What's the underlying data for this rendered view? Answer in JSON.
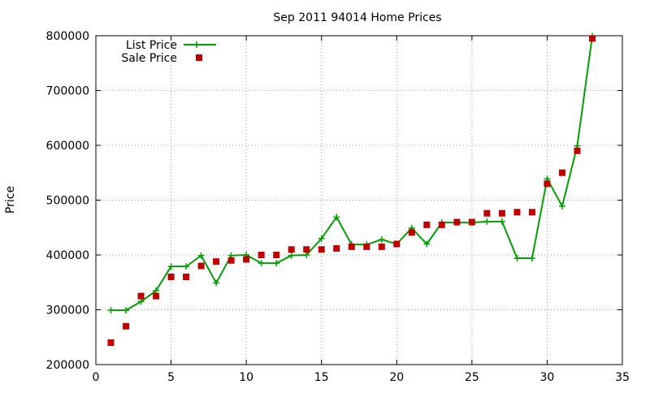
{
  "chart_data": {
    "type": "line",
    "title": "Sep 2011 94014 Home Prices",
    "xlabel": "",
    "ylabel": "Price",
    "xlim": [
      0,
      35
    ],
    "ylim": [
      200000,
      800000
    ],
    "grid": true,
    "legend_position": "top-left",
    "x_ticks": [
      "0",
      "5",
      "10",
      "15",
      "20",
      "25",
      "30",
      "35"
    ],
    "y_ticks": [
      "200000",
      "300000",
      "400000",
      "500000",
      "600000",
      "700000",
      "800000"
    ],
    "series": [
      {
        "name": "List Price",
        "style": "line-with-plus-markers",
        "color": "#00a000",
        "x": [
          1,
          2,
          3,
          4,
          5,
          6,
          7,
          8,
          9,
          10,
          11,
          12,
          13,
          14,
          15,
          16,
          17,
          18,
          19,
          20,
          21,
          22,
          23,
          24,
          25,
          26,
          27,
          28,
          29,
          30,
          31,
          32,
          33
        ],
        "values": [
          299000,
          299000,
          315000,
          335000,
          379000,
          379000,
          399000,
          349000,
          399000,
          400000,
          385000,
          385000,
          399000,
          400000,
          430000,
          469000,
          419000,
          419000,
          428000,
          420000,
          449000,
          420000,
          459000,
          459000,
          459000,
          461000,
          461000,
          394000,
          394000,
          539000,
          489000,
          599000,
          799000
        ]
      },
      {
        "name": "Sale Price",
        "style": "square-markers",
        "color": "#c00000",
        "x": [
          1,
          2,
          3,
          4,
          5,
          6,
          7,
          8,
          9,
          10,
          11,
          12,
          13,
          14,
          15,
          16,
          17,
          18,
          19,
          20,
          21,
          22,
          23,
          24,
          25,
          26,
          27,
          28,
          29,
          30,
          31,
          32,
          33
        ],
        "values": [
          240000,
          270000,
          325000,
          325000,
          360000,
          360000,
          380000,
          388000,
          390000,
          392000,
          400000,
          400000,
          410000,
          410000,
          410000,
          412000,
          415000,
          415000,
          415000,
          420000,
          441000,
          455000,
          455000,
          460000,
          460000,
          476000,
          476000,
          478000,
          478000,
          530000,
          550000,
          590000,
          795000
        ]
      }
    ]
  }
}
